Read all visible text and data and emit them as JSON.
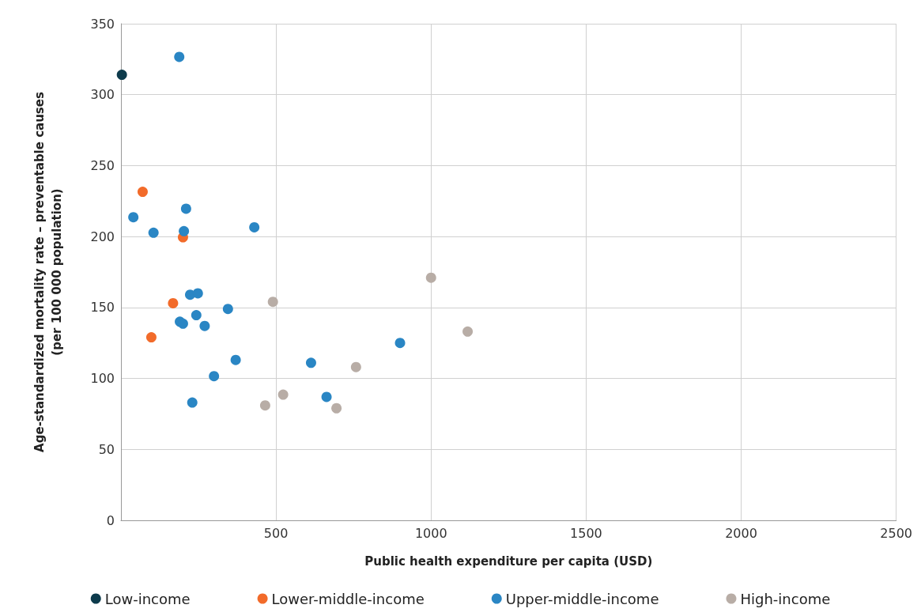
{
  "chart_data": {
    "type": "scatter",
    "xlabel": "Public health expenditure per capita (USD)",
    "ylabel": "Age-standardized mortality rate – preventable causes\n(per 100 000 population)",
    "xlim": [
      0,
      2500
    ],
    "xticks": [
      {
        "value": 0,
        "label": null
      },
      500,
      1000,
      1500,
      2000,
      2500
    ],
    "ylim": [
      0,
      350
    ],
    "yticks": [
      0,
      50,
      100,
      150,
      200,
      250,
      300,
      350
    ],
    "grid": true,
    "legend": "bottom",
    "marker": "circle",
    "series": [
      {
        "name": "Low-income",
        "color": "#0d3b4c",
        "x": [
          3
        ],
        "values": [
          314
        ]
      },
      {
        "name": "Lower-middle-income",
        "color": "#f26b2a",
        "x": [
          70,
          200,
          168,
          98
        ],
        "values": [
          231.5,
          199.5,
          153,
          129
        ]
      },
      {
        "name": "Upper-middle-income",
        "color": "#2a86c4",
        "x": [
          188,
          40,
          105,
          210,
          203,
          430,
          223,
          248,
          345,
          190,
          200,
          243,
          270,
          370,
          300,
          230,
          613,
          663,
          900
        ],
        "values": [
          326.6,
          213.6,
          202.7,
          219.6,
          203.8,
          206.5,
          159,
          160,
          149,
          140,
          138.6,
          144.6,
          137,
          113,
          101.6,
          83,
          111,
          87,
          125
        ]
      },
      {
        "name": "High-income",
        "color": "#b8ada6",
        "x": [
          490,
          1000,
          1118,
          758,
          523,
          465,
          695
        ],
        "values": [
          154,
          171,
          133,
          108,
          88.6,
          81,
          79
        ]
      }
    ]
  }
}
